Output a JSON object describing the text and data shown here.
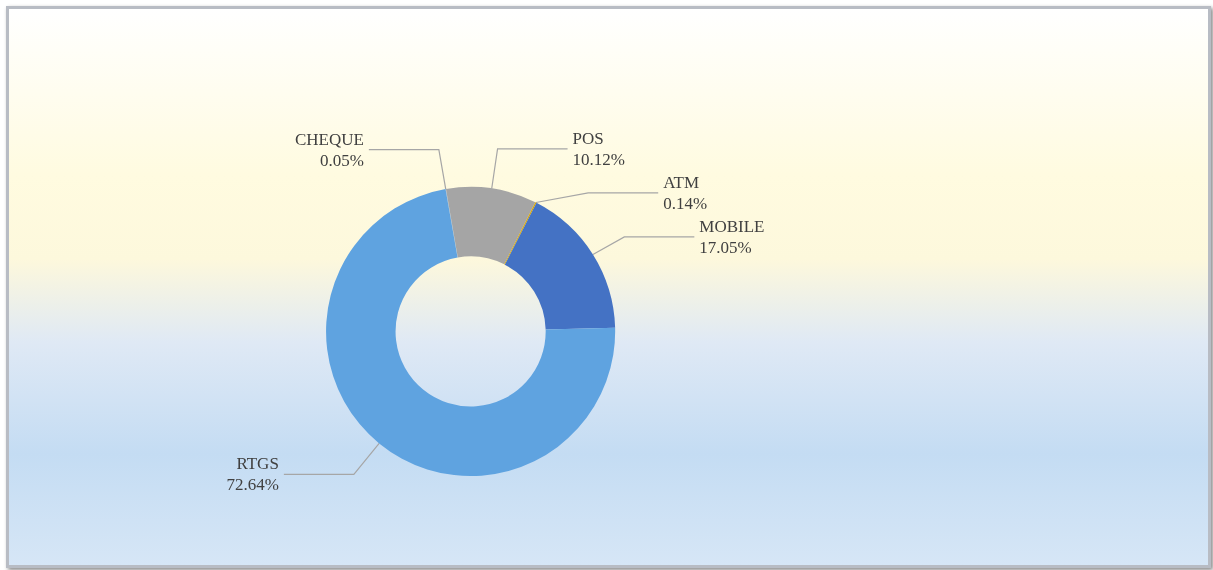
{
  "chart_data": {
    "type": "donut",
    "categories": [
      "CHEQUE",
      "POS",
      "ATM",
      "MOBILE",
      "RTGS"
    ],
    "values": [
      0.05,
      10.12,
      0.14,
      17.05,
      72.64
    ],
    "value_labels": [
      "0.05%",
      "10.12%",
      "0.14%",
      "17.05%",
      "72.64%"
    ],
    "colors": [
      "#8faadc",
      "#a5a5a5",
      "#d9a400",
      "#4472c4",
      "#5fa3e0"
    ],
    "legend": false
  }
}
